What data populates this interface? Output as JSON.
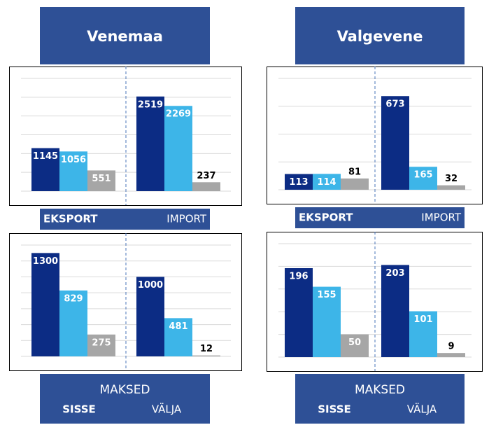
{
  "headers": [
    "Venemaa",
    "Valgevene"
  ],
  "chart_data": [
    {
      "type": "bar",
      "categories": [
        "EKSPORT",
        "IMPORT"
      ],
      "series": [
        {
          "color": "#0c2c84",
          "values": [
            1145,
            2519
          ]
        },
        {
          "color": "#3db5e8",
          "values": [
            1056,
            2269
          ]
        },
        {
          "color": "#a6a6a6",
          "values": [
            551,
            237
          ]
        }
      ],
      "ylim": [
        0,
        3000
      ],
      "yticks": [
        0,
        500,
        1000,
        1500,
        2000,
        2500,
        3000
      ],
      "grid": true
    },
    {
      "type": "bar",
      "categories": [
        "EKSPORT",
        "IMPORT"
      ],
      "series": [
        {
          "color": "#0c2c84",
          "values": [
            113,
            673
          ]
        },
        {
          "color": "#3db5e8",
          "values": [
            114,
            165
          ]
        },
        {
          "color": "#a6a6a6",
          "values": [
            81,
            32
          ]
        }
      ],
      "ylim": [
        0,
        800
      ],
      "yticks": [
        0,
        200,
        400,
        600,
        800
      ],
      "grid": true
    },
    {
      "type": "bar",
      "title": "MAKSED",
      "categories": [
        "SISSE",
        "VÄLJA"
      ],
      "series": [
        {
          "color": "#0c2c84",
          "values": [
            1300,
            1000
          ]
        },
        {
          "color": "#3db5e8",
          "values": [
            829,
            481
          ]
        },
        {
          "color": "#a6a6a6",
          "values": [
            275,
            12
          ]
        }
      ],
      "ylim": [
        0,
        1400
      ],
      "yticks": [
        0,
        200,
        400,
        600,
        800,
        1000,
        1200,
        1400
      ],
      "grid": true
    },
    {
      "type": "bar",
      "title": "MAKSED",
      "categories": [
        "SISSE",
        "VÄLJA"
      ],
      "series": [
        {
          "color": "#0c2c84",
          "values": [
            196,
            203
          ]
        },
        {
          "color": "#3db5e8",
          "values": [
            155,
            101
          ]
        },
        {
          "color": "#a6a6a6",
          "values": [
            50,
            9
          ]
        }
      ],
      "ylim": [
        0,
        250
      ],
      "yticks": [
        0,
        50,
        100,
        150,
        200,
        250
      ],
      "grid": true
    }
  ]
}
